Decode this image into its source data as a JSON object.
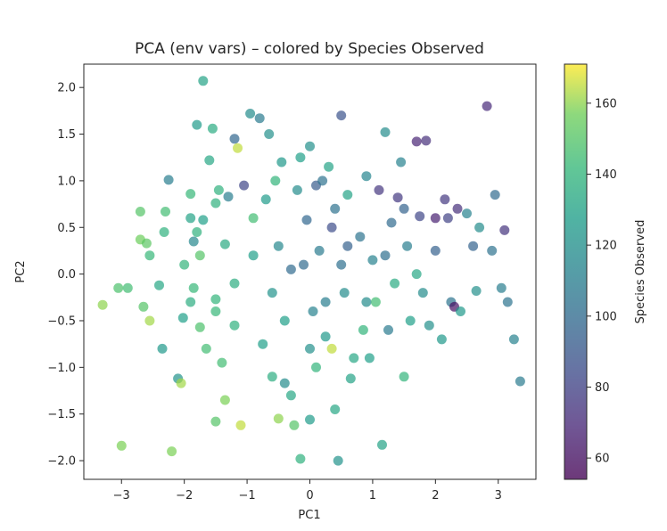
{
  "chart_data": {
    "type": "scatter",
    "title": "PCA (env vars) – colored by Species Observed",
    "xlabel": "PC1",
    "ylabel": "PC2",
    "xlim": [
      -3.6,
      3.6
    ],
    "ylim": [
      -2.2,
      2.25
    ],
    "xticks": [
      -3,
      -2,
      -1,
      0,
      1,
      2,
      3
    ],
    "yticks": [
      -2.0,
      -1.5,
      -1.0,
      -0.5,
      0.0,
      0.5,
      1.0,
      1.5,
      2.0
    ],
    "xtick_labels": [
      "−3",
      "−2",
      "−1",
      "0",
      "1",
      "2",
      "3"
    ],
    "ytick_labels": [
      "−2.0",
      "−1.5",
      "−1.0",
      "−0.5",
      "0.0",
      "0.5",
      "1.0",
      "1.5",
      "2.0"
    ],
    "grid": false,
    "colormap": "viridis",
    "marker_alpha": 0.7,
    "colorbar": {
      "label": "Species Observed",
      "range": [
        54,
        171
      ],
      "ticks": [
        60,
        80,
        100,
        120,
        140,
        160
      ],
      "tick_labels": [
        "60",
        "80",
        "100",
        "120",
        "140",
        "160"
      ]
    },
    "points": [
      {
        "x": -3.3,
        "y": -0.33,
        "c": 160
      },
      {
        "x": -3.0,
        "y": -1.84,
        "c": 158
      },
      {
        "x": -2.9,
        "y": -0.15,
        "c": 145
      },
      {
        "x": -3.05,
        "y": -0.15,
        "c": 148
      },
      {
        "x": -2.7,
        "y": 0.37,
        "c": 156
      },
      {
        "x": -2.7,
        "y": 0.67,
        "c": 150
      },
      {
        "x": -2.6,
        "y": 0.33,
        "c": 152
      },
      {
        "x": -2.55,
        "y": -0.5,
        "c": 162
      },
      {
        "x": -2.65,
        "y": -0.35,
        "c": 150
      },
      {
        "x": -2.55,
        "y": 0.2,
        "c": 142
      },
      {
        "x": -2.4,
        "y": -0.12,
        "c": 132
      },
      {
        "x": -2.3,
        "y": 0.67,
        "c": 145
      },
      {
        "x": -2.35,
        "y": -0.8,
        "c": 125
      },
      {
        "x": -2.25,
        "y": 1.01,
        "c": 110
      },
      {
        "x": -2.32,
        "y": 0.45,
        "c": 138
      },
      {
        "x": -2.1,
        "y": -1.12,
        "c": 122
      },
      {
        "x": -2.05,
        "y": -1.17,
        "c": 162
      },
      {
        "x": -2.2,
        "y": -1.9,
        "c": 158
      },
      {
        "x": -2.0,
        "y": 0.1,
        "c": 140
      },
      {
        "x": -2.02,
        "y": -0.47,
        "c": 128
      },
      {
        "x": -1.9,
        "y": 0.86,
        "c": 142
      },
      {
        "x": -1.9,
        "y": 0.6,
        "c": 130
      },
      {
        "x": -1.85,
        "y": 0.35,
        "c": 115
      },
      {
        "x": -1.85,
        "y": -0.15,
        "c": 142
      },
      {
        "x": -1.9,
        "y": -0.3,
        "c": 136
      },
      {
        "x": -1.75,
        "y": -0.57,
        "c": 148
      },
      {
        "x": -1.7,
        "y": 0.58,
        "c": 128
      },
      {
        "x": -1.75,
        "y": 0.2,
        "c": 150
      },
      {
        "x": -1.6,
        "y": 1.22,
        "c": 132
      },
      {
        "x": -1.65,
        "y": -0.8,
        "c": 145
      },
      {
        "x": -1.7,
        "y": 2.07,
        "c": 130
      },
      {
        "x": -1.8,
        "y": 1.6,
        "c": 126
      },
      {
        "x": -1.5,
        "y": 0.76,
        "c": 138
      },
      {
        "x": -1.5,
        "y": -0.27,
        "c": 140
      },
      {
        "x": -1.55,
        "y": 1.56,
        "c": 135
      },
      {
        "x": -1.45,
        "y": 0.9,
        "c": 138
      },
      {
        "x": -1.4,
        "y": -0.95,
        "c": 145
      },
      {
        "x": -1.5,
        "y": -1.58,
        "c": 150
      },
      {
        "x": -1.35,
        "y": -1.35,
        "c": 158
      },
      {
        "x": -1.3,
        "y": 0.83,
        "c": 110
      },
      {
        "x": -1.35,
        "y": 0.32,
        "c": 134
      },
      {
        "x": -1.2,
        "y": 1.45,
        "c": 98
      },
      {
        "x": -1.15,
        "y": 1.35,
        "c": 165
      },
      {
        "x": -1.1,
        "y": -1.62,
        "c": 165
      },
      {
        "x": -1.05,
        "y": 0.95,
        "c": 82
      },
      {
        "x": -1.2,
        "y": -0.55,
        "c": 138
      },
      {
        "x": -0.95,
        "y": 1.72,
        "c": 118
      },
      {
        "x": -0.9,
        "y": 0.6,
        "c": 145
      },
      {
        "x": -0.8,
        "y": 1.67,
        "c": 108
      },
      {
        "x": -0.75,
        "y": -0.75,
        "c": 128
      },
      {
        "x": -0.65,
        "y": 1.5,
        "c": 120
      },
      {
        "x": -0.6,
        "y": -1.1,
        "c": 136
      },
      {
        "x": -0.55,
        "y": 1.0,
        "c": 140
      },
      {
        "x": -0.45,
        "y": 1.2,
        "c": 125
      },
      {
        "x": -0.5,
        "y": -1.55,
        "c": 160
      },
      {
        "x": -0.5,
        "y": 0.3,
        "c": 115
      },
      {
        "x": -0.4,
        "y": -1.17,
        "c": 118
      },
      {
        "x": -0.25,
        "y": -1.62,
        "c": 150
      },
      {
        "x": -0.3,
        "y": 0.05,
        "c": 100
      },
      {
        "x": -0.2,
        "y": 0.9,
        "c": 118
      },
      {
        "x": -0.15,
        "y": -1.98,
        "c": 138
      },
      {
        "x": -0.15,
        "y": 1.25,
        "c": 128
      },
      {
        "x": -0.05,
        "y": 0.58,
        "c": 98
      },
      {
        "x": 0.0,
        "y": 1.37,
        "c": 120
      },
      {
        "x": 0.0,
        "y": -1.56,
        "c": 126
      },
      {
        "x": 0.05,
        "y": -0.4,
        "c": 112
      },
      {
        "x": 0.1,
        "y": 0.95,
        "c": 92
      },
      {
        "x": 0.15,
        "y": 0.25,
        "c": 108
      },
      {
        "x": 0.1,
        "y": -1.0,
        "c": 140
      },
      {
        "x": 0.25,
        "y": -0.67,
        "c": 125
      },
      {
        "x": 0.3,
        "y": 1.15,
        "c": 130
      },
      {
        "x": 0.35,
        "y": 0.5,
        "c": 85
      },
      {
        "x": 0.35,
        "y": -0.8,
        "c": 165
      },
      {
        "x": 0.4,
        "y": -1.45,
        "c": 132
      },
      {
        "x": 0.45,
        "y": -2.0,
        "c": 122
      },
      {
        "x": 0.5,
        "y": 1.7,
        "c": 88
      },
      {
        "x": 0.55,
        "y": -0.2,
        "c": 118
      },
      {
        "x": 0.6,
        "y": 0.85,
        "c": 130
      },
      {
        "x": 0.65,
        "y": -1.12,
        "c": 130
      },
      {
        "x": 0.8,
        "y": 0.4,
        "c": 105
      },
      {
        "x": 0.85,
        "y": -0.6,
        "c": 140
      },
      {
        "x": 0.9,
        "y": 1.05,
        "c": 114
      },
      {
        "x": 0.95,
        "y": -0.9,
        "c": 128
      },
      {
        "x": 1.0,
        "y": 0.15,
        "c": 112
      },
      {
        "x": 1.05,
        "y": -0.3,
        "c": 145
      },
      {
        "x": 1.1,
        "y": 0.9,
        "c": 75
      },
      {
        "x": 1.15,
        "y": -1.83,
        "c": 130
      },
      {
        "x": 1.2,
        "y": 1.52,
        "c": 118
      },
      {
        "x": 1.25,
        "y": -0.6,
        "c": 108
      },
      {
        "x": 1.3,
        "y": 0.55,
        "c": 100
      },
      {
        "x": 1.35,
        "y": -0.1,
        "c": 135
      },
      {
        "x": 1.4,
        "y": 0.82,
        "c": 76
      },
      {
        "x": 1.45,
        "y": 1.2,
        "c": 112
      },
      {
        "x": 1.5,
        "y": -1.1,
        "c": 140
      },
      {
        "x": 1.55,
        "y": 0.3,
        "c": 110
      },
      {
        "x": 1.6,
        "y": -0.5,
        "c": 128
      },
      {
        "x": 1.7,
        "y": 0.0,
        "c": 132
      },
      {
        "x": 1.75,
        "y": 0.62,
        "c": 82
      },
      {
        "x": 1.7,
        "y": 1.42,
        "c": 68
      },
      {
        "x": 1.85,
        "y": 1.43,
        "c": 72
      },
      {
        "x": 1.9,
        "y": -0.55,
        "c": 120
      },
      {
        "x": 2.0,
        "y": 0.25,
        "c": 95
      },
      {
        "x": 2.0,
        "y": 0.6,
        "c": 66
      },
      {
        "x": 2.1,
        "y": -0.7,
        "c": 125
      },
      {
        "x": 2.15,
        "y": 0.8,
        "c": 76
      },
      {
        "x": 2.2,
        "y": 0.6,
        "c": 80
      },
      {
        "x": 2.25,
        "y": -0.3,
        "c": 105
      },
      {
        "x": 2.3,
        "y": -0.35,
        "c": 60
      },
      {
        "x": 2.35,
        "y": 0.7,
        "c": 72
      },
      {
        "x": 2.4,
        "y": -0.4,
        "c": 125
      },
      {
        "x": 2.5,
        "y": 0.65,
        "c": 112
      },
      {
        "x": 2.6,
        "y": 0.3,
        "c": 96
      },
      {
        "x": 2.65,
        "y": -0.18,
        "c": 120
      },
      {
        "x": 2.7,
        "y": 0.5,
        "c": 118
      },
      {
        "x": 2.82,
        "y": 1.8,
        "c": 70
      },
      {
        "x": 2.95,
        "y": 0.85,
        "c": 100
      },
      {
        "x": 2.9,
        "y": 0.25,
        "c": 104
      },
      {
        "x": 3.1,
        "y": 0.47,
        "c": 74
      },
      {
        "x": 3.15,
        "y": -0.3,
        "c": 105
      },
      {
        "x": 3.25,
        "y": -0.7,
        "c": 112
      },
      {
        "x": 3.35,
        "y": -1.15,
        "c": 108
      },
      {
        "x": 3.05,
        "y": -0.15,
        "c": 110
      },
      {
        "x": 0.25,
        "y": -0.3,
        "c": 110
      },
      {
        "x": -0.1,
        "y": 0.1,
        "c": 100
      },
      {
        "x": 0.6,
        "y": 0.3,
        "c": 95
      },
      {
        "x": -0.6,
        "y": -0.2,
        "c": 122
      },
      {
        "x": 0.9,
        "y": -0.3,
        "c": 118
      },
      {
        "x": -0.9,
        "y": 0.2,
        "c": 128
      },
      {
        "x": 0.4,
        "y": 0.7,
        "c": 104
      },
      {
        "x": -0.4,
        "y": -0.5,
        "c": 128
      },
      {
        "x": 1.2,
        "y": 0.2,
        "c": 102
      },
      {
        "x": -1.2,
        "y": -0.1,
        "c": 136
      },
      {
        "x": 0.0,
        "y": -0.8,
        "c": 120
      },
      {
        "x": 0.7,
        "y": -0.9,
        "c": 132
      },
      {
        "x": -0.7,
        "y": 0.8,
        "c": 126
      },
      {
        "x": 1.5,
        "y": 0.7,
        "c": 96
      },
      {
        "x": -1.5,
        "y": -0.4,
        "c": 142
      },
      {
        "x": 0.2,
        "y": 1.0,
        "c": 104
      },
      {
        "x": -0.3,
        "y": -1.3,
        "c": 132
      },
      {
        "x": 1.8,
        "y": -0.2,
        "c": 118
      },
      {
        "x": -1.8,
        "y": 0.45,
        "c": 138
      },
      {
        "x": 0.5,
        "y": 0.1,
        "c": 102
      }
    ]
  }
}
